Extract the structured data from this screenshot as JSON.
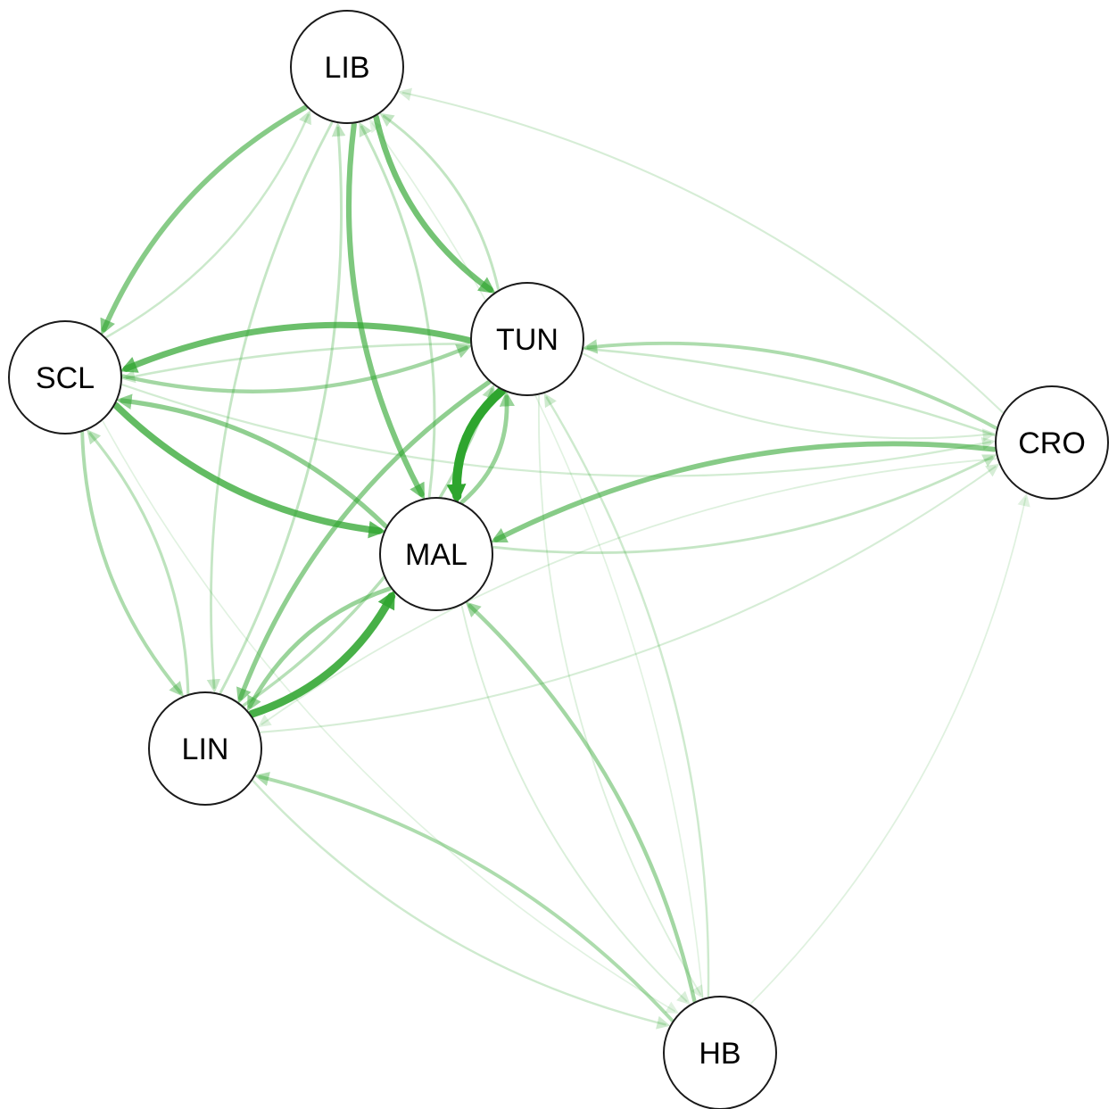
{
  "diagram": {
    "type": "directed-network",
    "edge_color": "#2ea52e",
    "nodes": [
      {
        "id": "LIB",
        "label": "LIB"
      },
      {
        "id": "TUN",
        "label": "TUN"
      },
      {
        "id": "SCL",
        "label": "SCL"
      },
      {
        "id": "CRO",
        "label": "CRO"
      },
      {
        "id": "MAL",
        "label": "MAL"
      },
      {
        "id": "LIN",
        "label": "LIN"
      },
      {
        "id": "HB",
        "label": "HB"
      }
    ],
    "edges": [
      {
        "from": "TUN",
        "to": "MAL",
        "weight": 1.0
      },
      {
        "from": "LIN",
        "to": "MAL",
        "weight": 0.85
      },
      {
        "from": "SCL",
        "to": "MAL",
        "weight": 0.7
      },
      {
        "from": "TUN",
        "to": "SCL",
        "weight": 0.65
      },
      {
        "from": "LIB",
        "to": "TUN",
        "weight": 0.6
      },
      {
        "from": "LIB",
        "to": "MAL",
        "weight": 0.55
      },
      {
        "from": "LIB",
        "to": "SCL",
        "weight": 0.5
      },
      {
        "from": "CRO",
        "to": "MAL",
        "weight": 0.5
      },
      {
        "from": "MAL",
        "to": "SCL",
        "weight": 0.45
      },
      {
        "from": "TUN",
        "to": "LIN",
        "weight": 0.45
      },
      {
        "from": "MAL",
        "to": "TUN",
        "weight": 0.4
      },
      {
        "from": "MAL",
        "to": "LIN",
        "weight": 0.4
      },
      {
        "from": "SCL",
        "to": "TUN",
        "weight": 0.35
      },
      {
        "from": "HB",
        "to": "MAL",
        "weight": 0.35
      },
      {
        "from": "HB",
        "to": "LIN",
        "weight": 0.3
      },
      {
        "from": "CRO",
        "to": "TUN",
        "weight": 0.3
      },
      {
        "from": "SCL",
        "to": "LIN",
        "weight": 0.3
      },
      {
        "from": "LIN",
        "to": "TUN",
        "weight": 0.25
      },
      {
        "from": "LIN",
        "to": "SCL",
        "weight": 0.22
      },
      {
        "from": "TUN",
        "to": "LIB",
        "weight": 0.2
      },
      {
        "from": "MAL",
        "to": "LIB",
        "weight": 0.2
      },
      {
        "from": "LIN",
        "to": "LIB",
        "weight": 0.2
      },
      {
        "from": "LIB",
        "to": "LIN",
        "weight": 0.18
      },
      {
        "from": "MAL",
        "to": "CRO",
        "weight": 0.18
      },
      {
        "from": "CRO",
        "to": "SCL",
        "weight": 0.15
      },
      {
        "from": "SCL",
        "to": "CRO",
        "weight": 0.12
      },
      {
        "from": "LIN",
        "to": "HB",
        "weight": 0.14
      },
      {
        "from": "HB",
        "to": "TUN",
        "weight": 0.14
      },
      {
        "from": "CRO",
        "to": "LIB",
        "weight": 0.1
      },
      {
        "from": "SCL",
        "to": "LIB",
        "weight": 0.15
      },
      {
        "from": "TUN",
        "to": "CRO",
        "weight": 0.1
      },
      {
        "from": "LIN",
        "to": "CRO",
        "weight": 0.1
      },
      {
        "from": "MAL",
        "to": "HB",
        "weight": 0.08
      },
      {
        "from": "HB",
        "to": "CRO",
        "weight": 0.06
      },
      {
        "from": "TUN",
        "to": "HB",
        "weight": 0.07
      },
      {
        "from": "CRO",
        "to": "LIN",
        "weight": 0.07
      },
      {
        "from": "SCL",
        "to": "HB",
        "weight": 0.05
      },
      {
        "from": "HB",
        "to": "LIB",
        "weight": 0.05
      }
    ]
  }
}
